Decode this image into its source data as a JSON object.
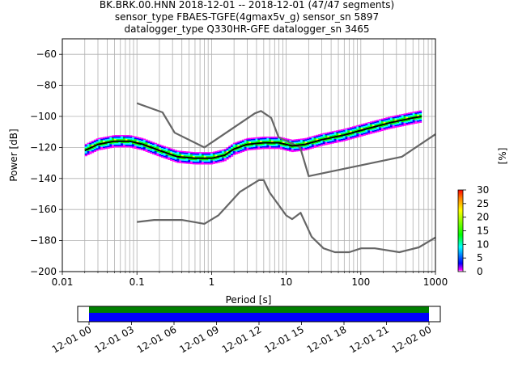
{
  "chart_data": {
    "type": "heatmap",
    "title_lines": [
      "BK.BRK.00.HNN   2018-12-01 -- 2018-12-01  (47/47 segments)",
      "sensor_type FBAES-TGFE(4gmax5v_g) sensor_sn 5897",
      "datalogger_type Q330HR-GFE datalogger_sn 3465"
    ],
    "xlabel": "Period [s]",
    "ylabel": "Power [dB]",
    "x_scale": "log",
    "xlim": [
      0.01,
      1000
    ],
    "ylim": [
      -200,
      -50
    ],
    "grid": true,
    "x_tick_labels": [
      "0.01",
      "0.1",
      "1",
      "10",
      "100",
      "1000"
    ],
    "y_ticks": [
      -60,
      -80,
      -100,
      -120,
      -140,
      -160,
      -180,
      -200
    ],
    "colorbar": {
      "label": "[%]",
      "ticks": [
        0,
        5,
        10,
        15,
        20,
        25,
        30
      ],
      "range": [
        0,
        30
      ]
    },
    "mean_curve": {
      "period": [
        0.02,
        0.03,
        0.05,
        0.08,
        0.12,
        0.2,
        0.35,
        0.6,
        1.0,
        1.5,
        2.0,
        3.0,
        5.0,
        8.0,
        12.0,
        18.0,
        30.0,
        60.0,
        120.0,
        250.0,
        500.0,
        650.0
      ],
      "power": [
        -122,
        -118,
        -116,
        -116,
        -118,
        -122,
        -126,
        -127,
        -127,
        -125,
        -121,
        -118,
        -117,
        -117,
        -119,
        -118,
        -115,
        -112,
        -108,
        -104,
        -101,
        -100
      ]
    },
    "high_noise_model": {
      "period": [
        0.1,
        0.22,
        0.32,
        0.8,
        3.8,
        4.6,
        6.3,
        7.9,
        15.4,
        20.0,
        354.8,
        1000
      ],
      "power": [
        -91.5,
        -97.4,
        -110.5,
        -120.0,
        -98.0,
        -96.5,
        -101.0,
        -113.5,
        -120.0,
        -138.5,
        -126.0,
        -111.5
      ]
    },
    "low_noise_model": {
      "period": [
        0.1,
        0.17,
        0.4,
        0.8,
        1.24,
        2.4,
        4.3,
        5.0,
        6.0,
        10.0,
        12.0,
        15.6,
        21.9,
        31.6,
        45.0,
        70.0,
        101.0,
        154.0,
        328.0,
        600.0,
        1000
      ],
      "power": [
        -168.0,
        -166.7,
        -166.7,
        -169.2,
        -163.7,
        -148.6,
        -141.1,
        -141.1,
        -149.0,
        -163.8,
        -166.2,
        -162.1,
        -177.5,
        -185.0,
        -187.5,
        -187.5,
        -185.0,
        -185.0,
        -187.5,
        -184.4,
        -178.0
      ]
    },
    "histogram_band": {
      "period_range": [
        0.02,
        650
      ],
      "spread_db": 4
    },
    "timeline": {
      "tick_labels": [
        "12-01 00",
        "12-01 03",
        "12-01 06",
        "12-01 09",
        "12-01 12",
        "12-01 15",
        "12-01 18",
        "12-01 21",
        "12-02 00"
      ],
      "start_hour": -0.8,
      "end_hour": 24.8,
      "data_coverage": [
        0,
        24
      ],
      "colors": {
        "coverage": "#0000ff",
        "gaps_ok": "#008000"
      }
    }
  }
}
